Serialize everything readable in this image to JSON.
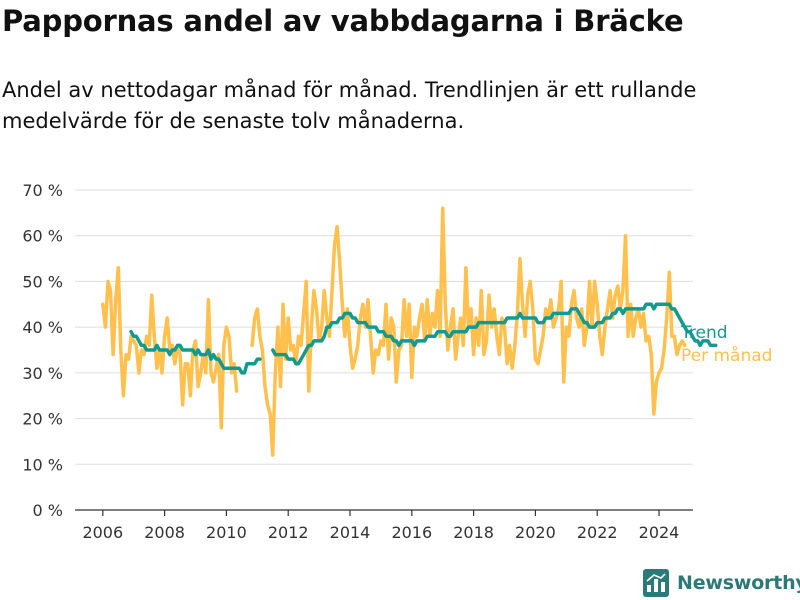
{
  "chart_data": {
    "type": "line",
    "title": "Pappornas andel av vabbdagarna i Bräcke",
    "subtitle": "Andel av nettodagar månad för månad. Trendlinjen är ett rullande medelvärde för de senaste tolv månaderna.",
    "xlabel": "",
    "ylabel": "",
    "x_range": [
      2005.1,
      2025.1
    ],
    "ylim": [
      0,
      70
    ],
    "y_ticks": [
      0,
      10,
      20,
      30,
      40,
      50,
      60,
      70
    ],
    "y_tick_labels": [
      "0 %",
      "10 %",
      "20 %",
      "30 %",
      "40 %",
      "50 %",
      "60 %",
      "70 %"
    ],
    "x_ticks": [
      2006,
      2008,
      2010,
      2012,
      2014,
      2016,
      2018,
      2020,
      2022,
      2024
    ],
    "x_tick_labels": [
      "2006",
      "2008",
      "2010",
      "2012",
      "2014",
      "2016",
      "2018",
      "2020",
      "2022",
      "2024"
    ],
    "grid": true,
    "legend_position": "right",
    "series": [
      {
        "name": "Per månad",
        "color": "#ffc04d",
        "segments": [
          {
            "start": 2006.0,
            "values": [
              45,
              40,
              50,
              48,
              34,
              46,
              53,
              35,
              25,
              34,
              33,
              38,
              37,
              36,
              30,
              35,
              34,
              38,
              36,
              47,
              38,
              31,
              35,
              30,
              38,
              42,
              35,
              36,
              32,
              36,
              34,
              23,
              32,
              32,
              25,
              35,
              37,
              27,
              30,
              34,
              30,
              46,
              30,
              28,
              31,
              34,
              18,
              36,
              40,
              38,
              30,
              32,
              26
            ]
          },
          {
            "start": 2010.833,
            "values": [
              36,
              42,
              44,
              38,
              35,
              27,
              23,
              21,
              12,
              30,
              40,
              27,
              45,
              33,
              42,
              35,
              36,
              32,
              38,
              36,
              43,
              50,
              26,
              40,
              48,
              44,
              37,
              40,
              48,
              42,
              38,
              48,
              58,
              62,
              54,
              45,
              38,
              44,
              36,
              31,
              33,
              36,
              42,
              45,
              40,
              46,
              38,
              30,
              35,
              34,
              37,
              36,
              45,
              33,
              42,
              40,
              28,
              35,
              36,
              46,
              38,
              45,
              29,
              40,
              38,
              42,
              45,
              37,
              46,
              38,
              43,
              40,
              48,
              38,
              66,
              45,
              35,
              40,
              44,
              33,
              38,
              42,
              36,
              53,
              40,
              44,
              34,
              42,
              36,
              48,
              34,
              37,
              47,
              40,
              44,
              38,
              34,
              42,
              40,
              32,
              36,
              31,
              36,
              43,
              55,
              45,
              38,
              47,
              50,
              44,
              33,
              32,
              35,
              38,
              44,
              42,
              46,
              40,
              42,
              44,
              50,
              28,
              40,
              38,
              45,
              48,
              42,
              40,
              44,
              36,
              40,
              50,
              40,
              50,
              45,
              38,
              34,
              40,
              44,
              48,
              42,
              47,
              49,
              44,
              48,
              60,
              38,
              45,
              38,
              42,
              44,
              40,
              43,
              37,
              38,
              34,
              21,
              28,
              30,
              31,
              35,
              42,
              52,
              38,
              38,
              34,
              36,
              37,
              36
            ]
          }
        ]
      },
      {
        "name": "Trend",
        "color": "#139a8e",
        "segments": [
          {
            "start": 2006.917,
            "values": [
              39,
              38,
              38,
              37,
              36,
              36,
              35,
              35,
              35,
              35,
              36,
              35,
              35,
              35,
              35,
              34,
              35,
              35,
              36,
              36,
              35,
              35,
              35,
              35,
              35,
              34,
              35,
              34,
              34,
              34,
              35,
              33,
              34,
              33,
              33,
              32,
              31,
              31,
              31,
              31,
              31,
              31,
              31,
              30,
              30,
              32,
              32,
              32,
              32,
              33,
              33
            ]
          },
          {
            "start": 2011.5,
            "values": [
              35,
              34,
              34,
              34,
              34,
              34,
              33,
              33,
              33,
              32,
              32,
              33,
              34,
              35,
              36,
              36,
              37,
              37,
              37,
              37,
              38,
              40,
              40,
              41,
              41,
              41,
              42,
              42,
              43,
              43,
              43,
              42,
              42,
              41,
              41,
              41,
              41,
              40,
              40,
              40,
              40,
              39,
              39,
              39,
              38,
              38,
              38,
              37,
              37,
              36,
              37,
              37,
              37,
              37,
              37,
              36,
              37,
              37,
              37,
              37,
              38,
              38,
              38,
              38,
              39,
              39,
              39,
              39,
              38,
              38,
              39,
              39,
              39,
              39,
              39,
              39,
              40,
              40,
              40,
              40,
              41,
              41,
              41,
              41,
              41,
              41,
              41,
              41,
              41,
              41,
              41,
              42,
              42,
              42,
              42,
              42,
              43,
              42,
              42,
              42,
              42,
              42,
              42,
              41,
              41,
              41,
              42,
              42,
              42,
              43,
              43,
              43,
              43,
              43,
              43,
              43,
              44,
              44,
              44,
              43,
              42,
              41,
              41,
              40,
              40,
              40,
              41,
              41,
              41,
              42,
              42,
              42,
              43,
              43,
              44,
              44,
              43,
              44,
              44,
              44,
              44,
              44,
              44,
              44,
              44,
              45,
              45,
              45,
              44,
              45,
              45,
              45,
              45,
              45,
              45,
              44,
              44,
              43,
              42,
              41,
              40,
              39,
              39,
              38,
              37,
              37,
              36,
              37,
              37,
              37,
              36,
              36,
              36
            ]
          }
        ]
      }
    ]
  },
  "brand": {
    "name": "Newsworthy",
    "icon": "newsworthy-logo-icon",
    "color": "#2b7a78"
  }
}
